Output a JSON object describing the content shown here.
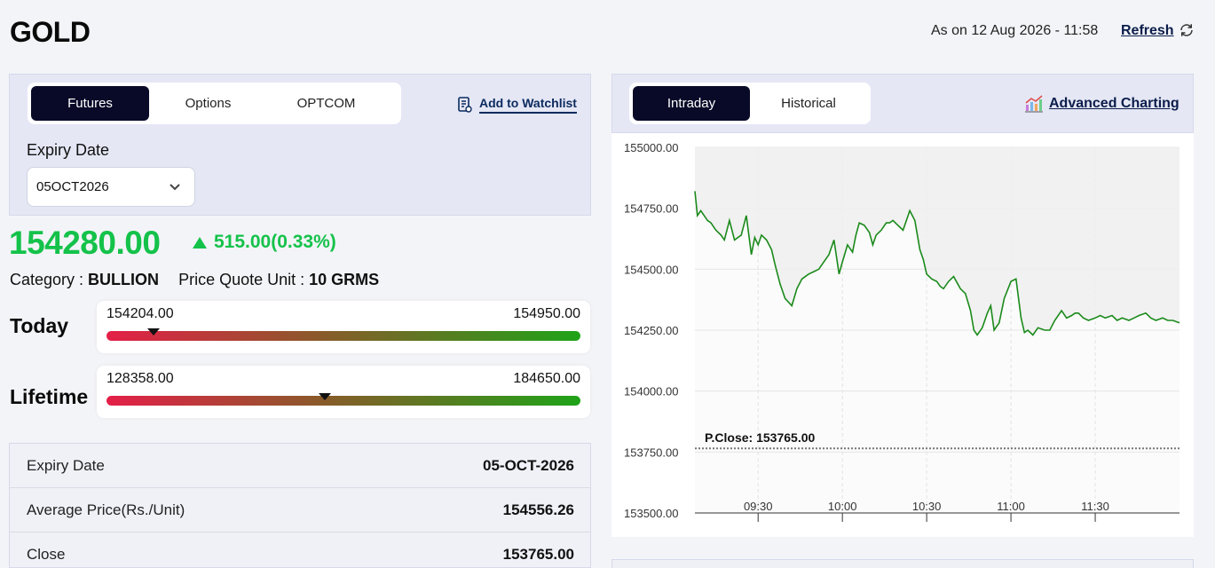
{
  "header": {
    "title": "GOLD",
    "as_on": "As on 12 Aug 2026 - 11:58",
    "refresh_label": "Refresh"
  },
  "left": {
    "tabs": [
      {
        "label": "Futures",
        "active": true
      },
      {
        "label": "Options",
        "active": false
      },
      {
        "label": "OPTCOM",
        "active": false
      }
    ],
    "watchlist_label": "Add to Watchlist",
    "expiry_label": "Expiry Date",
    "expiry_value": "05OCT2026",
    "price": "154280.00",
    "change": "515.00(0.33%)",
    "category_key": "Category : ",
    "category_value": "BULLION",
    "quote_key": "Price Quote Unit : ",
    "quote_value": "10 GRMS",
    "today": {
      "label": "Today",
      "low": "154204.00",
      "high": "154950.00",
      "marker_fraction": 0.1
    },
    "lifetime": {
      "label": "Lifetime",
      "low": "128358.00",
      "high": "184650.00",
      "marker_fraction": 0.46
    },
    "details": [
      {
        "key": "Expiry Date",
        "value": "05-OCT-2026"
      },
      {
        "key": "Average Price(Rs./Unit)",
        "value": "154556.26"
      },
      {
        "key": "Close",
        "value": "153765.00"
      }
    ]
  },
  "right": {
    "tabs": [
      {
        "label": "Intraday",
        "active": true
      },
      {
        "label": "Historical",
        "active": false
      }
    ],
    "advanced_label": "Advanced Charting"
  },
  "colors": {
    "up_green": "#14c24a",
    "dark_navy": "#080a28",
    "line_green": "#1a8a1a"
  },
  "chart_data": {
    "type": "line",
    "ylim": [
      153500,
      155000
    ],
    "yticks": [
      "155000.00",
      "154750.00",
      "154500.00",
      "154250.00",
      "154000.00",
      "153750.00",
      "153500.00"
    ],
    "xlim": [
      9.125,
      12.0
    ],
    "xticks": [
      "09:30",
      "10:00",
      "10:30",
      "11:00",
      "11:30"
    ],
    "prev_close": 153765,
    "prev_close_label": "P.Close: 153765.00",
    "series": [
      {
        "x": [
          9.125,
          9.14,
          9.16,
          9.2,
          9.22,
          9.25,
          9.28,
          9.3,
          9.33,
          9.36,
          9.4,
          9.43,
          9.46,
          9.48,
          9.5,
          9.52,
          9.55,
          9.58,
          9.6,
          9.63,
          9.66,
          9.7,
          9.73,
          9.76,
          9.8,
          9.83,
          9.86,
          9.88,
          9.9,
          9.92,
          9.95,
          9.98,
          10.0,
          10.03,
          10.06,
          10.08,
          10.1,
          10.13,
          10.16,
          10.18,
          10.2,
          10.23,
          10.26,
          10.28,
          10.3,
          10.33,
          10.36,
          10.38,
          10.4,
          10.43,
          10.46,
          10.48,
          10.5,
          10.53,
          10.56,
          10.58,
          10.6,
          10.63,
          10.66,
          10.7,
          10.73,
          10.76,
          10.78,
          10.8,
          10.83,
          10.86,
          10.88,
          10.9,
          10.93,
          10.96,
          11.0,
          11.03,
          11.06,
          11.08,
          11.1,
          11.13,
          11.16,
          11.2,
          11.23,
          11.26,
          11.3,
          11.33,
          11.36,
          11.38,
          11.4,
          11.43,
          11.46,
          11.5,
          11.53,
          11.56,
          11.6,
          11.63,
          11.66,
          11.7,
          11.73,
          11.76,
          11.8,
          11.83,
          11.86,
          11.9,
          11.93,
          11.96,
          12.0
        ],
        "y": [
          154820,
          154720,
          154740,
          154700,
          154690,
          154660,
          154640,
          154620,
          154700,
          154620,
          154640,
          154720,
          154560,
          154630,
          154600,
          154640,
          154620,
          154580,
          154520,
          154440,
          154380,
          154350,
          154420,
          154460,
          154480,
          154490,
          154500,
          154520,
          154540,
          154560,
          154620,
          154480,
          154530,
          154600,
          154570,
          154640,
          154690,
          154680,
          154650,
          154600,
          154640,
          154660,
          154690,
          154690,
          154700,
          154680,
          154660,
          154700,
          154740,
          154700,
          154580,
          154540,
          154480,
          154460,
          154450,
          154430,
          154420,
          154450,
          154470,
          154420,
          154400,
          154330,
          154250,
          154230,
          154260,
          154320,
          154350,
          154250,
          154280,
          154380,
          154450,
          154460,
          154300,
          154240,
          154250,
          154230,
          154260,
          154250,
          154250,
          154290,
          154330,
          154300,
          154310,
          154320,
          154320,
          154300,
          154290,
          154300,
          154310,
          154300,
          154310,
          154290,
          154300,
          154290,
          154300,
          154310,
          154320,
          154300,
          154290,
          154300,
          154290,
          154290,
          154280
        ]
      }
    ]
  }
}
